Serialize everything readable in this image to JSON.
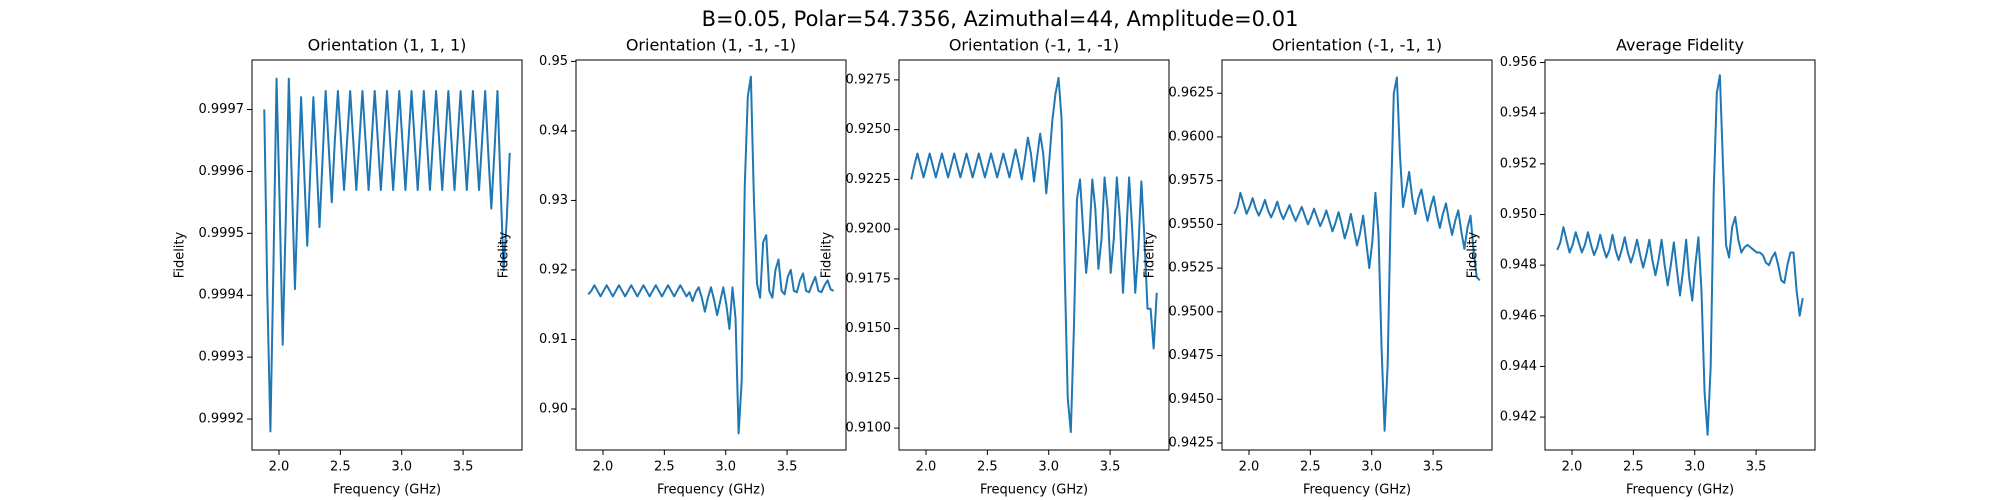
{
  "title": "B=0.05, Polar=54.7356, Azimuthal=44, Amplitude=0.01",
  "chart_data": [
    {
      "type": "line",
      "title": "Orientation (1, 1, 1)",
      "x_label": "Frequency (GHz)",
      "y_label": "Fidelity",
      "color": "#1f77b4",
      "xlim": [
        1.78,
        3.98
      ],
      "xticks": [
        {
          "value": 2,
          "label": "2.0"
        },
        2.5,
        {
          "value": 3,
          "label": "3.0"
        },
        3.5
      ],
      "ylim": [
        0.99915,
        0.99978
      ],
      "yticks": [
        0.9992,
        0.9993,
        0.9994,
        0.9995,
        0.9996,
        0.9997
      ],
      "x": [
        1.88,
        1.905,
        1.93,
        1.955,
        1.98,
        2.005,
        2.03,
        2.055,
        2.08,
        2.105,
        2.13,
        2.155,
        2.18,
        2.205,
        2.23,
        2.255,
        2.28,
        2.305,
        2.33,
        2.355,
        2.38,
        2.405,
        2.43,
        2.455,
        2.48,
        2.505,
        2.53,
        2.555,
        2.58,
        2.605,
        2.63,
        2.655,
        2.68,
        2.705,
        2.73,
        2.755,
        2.78,
        2.805,
        2.83,
        2.855,
        2.88,
        2.905,
        2.93,
        2.955,
        2.98,
        3.005,
        3.03,
        3.055,
        3.08,
        3.105,
        3.13,
        3.155,
        3.18,
        3.205,
        3.23,
        3.255,
        3.28,
        3.305,
        3.33,
        3.355,
        3.38,
        3.405,
        3.43,
        3.455,
        3.48,
        3.505,
        3.53,
        3.555,
        3.58,
        3.605,
        3.63,
        3.655,
        3.68,
        3.705,
        3.73,
        3.755,
        3.78,
        3.805,
        3.83,
        3.855,
        3.88
      ],
      "values": [
        0.9997,
        0.9994,
        0.99918,
        0.99945,
        0.99975,
        0.99955,
        0.99932,
        0.99952,
        0.99975,
        0.99958,
        0.99941,
        0.99957,
        0.99972,
        0.9996,
        0.99948,
        0.9996,
        0.99972,
        0.99962,
        0.99951,
        0.99962,
        0.99973,
        0.99964,
        0.99955,
        0.99965,
        0.99973,
        0.99965,
        0.99957,
        0.99965,
        0.99973,
        0.99965,
        0.99957,
        0.99965,
        0.99973,
        0.99965,
        0.99957,
        0.99965,
        0.99973,
        0.99965,
        0.99957,
        0.99965,
        0.99973,
        0.99965,
        0.99957,
        0.99965,
        0.99973,
        0.99965,
        0.99957,
        0.99965,
        0.99973,
        0.99965,
        0.99957,
        0.99965,
        0.99973,
        0.99965,
        0.99957,
        0.99965,
        0.99973,
        0.99965,
        0.99957,
        0.99965,
        0.99973,
        0.99965,
        0.99957,
        0.99965,
        0.99973,
        0.99965,
        0.99957,
        0.99965,
        0.99973,
        0.99965,
        0.99957,
        0.99965,
        0.99973,
        0.99963,
        0.99954,
        0.99963,
        0.99973,
        0.99958,
        0.99944,
        0.99952,
        0.99963
      ]
    },
    {
      "type": "line",
      "title": "Orientation (1, -1, -1)",
      "x_label": "Frequency (GHz)",
      "y_label": "Fidelity",
      "color": "#1f77b4",
      "xlim": [
        1.78,
        3.98
      ],
      "xticks": [
        {
          "value": 2,
          "label": "2.0"
        },
        2.5,
        {
          "value": 3,
          "label": "3.0"
        },
        3.5
      ],
      "ylim": [
        0.8941,
        0.9502
      ],
      "yticks": [
        {
          "value": 0.9,
          "label": "0.90"
        },
        0.91,
        0.92,
        0.93,
        0.94,
        0.95
      ],
      "x": [
        1.88,
        1.905,
        1.93,
        1.955,
        1.98,
        2.005,
        2.03,
        2.055,
        2.08,
        2.105,
        2.13,
        2.155,
        2.18,
        2.205,
        2.23,
        2.255,
        2.28,
        2.305,
        2.33,
        2.355,
        2.38,
        2.405,
        2.43,
        2.455,
        2.48,
        2.505,
        2.53,
        2.555,
        2.58,
        2.605,
        2.63,
        2.655,
        2.68,
        2.705,
        2.73,
        2.755,
        2.78,
        2.805,
        2.83,
        2.855,
        2.88,
        2.905,
        2.93,
        2.955,
        2.98,
        3.005,
        3.03,
        3.055,
        3.08,
        3.105,
        3.13,
        3.155,
        3.18,
        3.205,
        3.23,
        3.255,
        3.28,
        3.305,
        3.33,
        3.355,
        3.38,
        3.405,
        3.43,
        3.455,
        3.48,
        3.505,
        3.53,
        3.555,
        3.58,
        3.605,
        3.63,
        3.655,
        3.68,
        3.705,
        3.73,
        3.755,
        3.78,
        3.805,
        3.83,
        3.855,
        3.88
      ],
      "values": [
        0.9165,
        0.917,
        0.9178,
        0.917,
        0.9162,
        0.917,
        0.9178,
        0.917,
        0.9162,
        0.917,
        0.9178,
        0.917,
        0.9162,
        0.917,
        0.9178,
        0.917,
        0.9162,
        0.917,
        0.9178,
        0.917,
        0.9162,
        0.917,
        0.9178,
        0.917,
        0.9162,
        0.917,
        0.9178,
        0.917,
        0.9162,
        0.917,
        0.9178,
        0.917,
        0.9162,
        0.9168,
        0.9155,
        0.9168,
        0.9175,
        0.916,
        0.914,
        0.916,
        0.9175,
        0.9157,
        0.9135,
        0.9155,
        0.9175,
        0.915,
        0.9115,
        0.9175,
        0.913,
        0.8965,
        0.904,
        0.932,
        0.945,
        0.9478,
        0.93,
        0.918,
        0.916,
        0.924,
        0.925,
        0.917,
        0.916,
        0.92,
        0.9215,
        0.917,
        0.9165,
        0.919,
        0.92,
        0.917,
        0.9168,
        0.9185,
        0.9195,
        0.917,
        0.9168,
        0.918,
        0.919,
        0.917,
        0.9168,
        0.9178,
        0.9185,
        0.9172,
        0.917
      ]
    },
    {
      "type": "line",
      "title": "Orientation (-1, 1, -1)",
      "x_label": "Frequency (GHz)",
      "y_label": "Fidelity",
      "color": "#1f77b4",
      "xlim": [
        1.78,
        3.98
      ],
      "xticks": [
        {
          "value": 2,
          "label": "2.0"
        },
        2.5,
        {
          "value": 3,
          "label": "3.0"
        },
        3.5
      ],
      "ylim": [
        0.9089,
        0.9285
      ],
      "yticks": [
        {
          "value": 0.91,
          "label": "0.9100"
        },
        0.9125,
        {
          "value": 0.915,
          "label": "0.9150"
        },
        0.9175,
        {
          "value": 0.92,
          "label": "0.9200"
        },
        0.9225,
        {
          "value": 0.925,
          "label": "0.9250"
        },
        0.9275
      ],
      "x": [
        1.88,
        1.905,
        1.93,
        1.955,
        1.98,
        2.005,
        2.03,
        2.055,
        2.08,
        2.105,
        2.13,
        2.155,
        2.18,
        2.205,
        2.23,
        2.255,
        2.28,
        2.305,
        2.33,
        2.355,
        2.38,
        2.405,
        2.43,
        2.455,
        2.48,
        2.505,
        2.53,
        2.555,
        2.58,
        2.605,
        2.63,
        2.655,
        2.68,
        2.705,
        2.73,
        2.755,
        2.78,
        2.805,
        2.83,
        2.855,
        2.88,
        2.905,
        2.93,
        2.955,
        2.98,
        3.005,
        3.03,
        3.055,
        3.08,
        3.105,
        3.13,
        3.155,
        3.18,
        3.205,
        3.23,
        3.255,
        3.28,
        3.305,
        3.33,
        3.355,
        3.38,
        3.405,
        3.43,
        3.455,
        3.48,
        3.505,
        3.53,
        3.555,
        3.58,
        3.605,
        3.63,
        3.655,
        3.68,
        3.705,
        3.73,
        3.755,
        3.78,
        3.805,
        3.83,
        3.855,
        3.88
      ],
      "values": [
        0.9225,
        0.9232,
        0.9238,
        0.9232,
        0.9226,
        0.9232,
        0.9238,
        0.9232,
        0.9226,
        0.9232,
        0.9238,
        0.9232,
        0.9226,
        0.9232,
        0.9238,
        0.9232,
        0.9226,
        0.9232,
        0.9238,
        0.9232,
        0.9226,
        0.9232,
        0.9238,
        0.9232,
        0.9226,
        0.9232,
        0.9238,
        0.9232,
        0.9226,
        0.9232,
        0.9238,
        0.9232,
        0.9226,
        0.9233,
        0.924,
        0.9233,
        0.9225,
        0.9235,
        0.9246,
        0.9238,
        0.9224,
        0.9236,
        0.9248,
        0.9238,
        0.9218,
        0.9235,
        0.9255,
        0.9268,
        0.9276,
        0.9255,
        0.918,
        0.9115,
        0.9098,
        0.915,
        0.9215,
        0.9225,
        0.92,
        0.9178,
        0.9195,
        0.9225,
        0.921,
        0.918,
        0.9195,
        0.9226,
        0.921,
        0.9178,
        0.9195,
        0.9226,
        0.9205,
        0.9168,
        0.9195,
        0.9226,
        0.92,
        0.9168,
        0.919,
        0.9224,
        0.9195,
        0.916,
        0.916,
        0.914,
        0.9168
      ]
    },
    {
      "type": "line",
      "title": "Orientation (-1, -1, 1)",
      "x_label": "Frequency (GHz)",
      "y_label": "Fidelity",
      "color": "#1f77b4",
      "xlim": [
        1.78,
        3.98
      ],
      "xticks": [
        {
          "value": 2,
          "label": "2.0"
        },
        2.5,
        {
          "value": 3,
          "label": "3.0"
        },
        3.5
      ],
      "ylim": [
        0.9421,
        0.9644
      ],
      "yticks": [
        0.9425,
        {
          "value": 0.945,
          "label": "0.9450"
        },
        0.9475,
        {
          "value": 0.95,
          "label": "0.9500"
        },
        0.9525,
        {
          "value": 0.955,
          "label": "0.9550"
        },
        0.9575,
        {
          "value": 0.96,
          "label": "0.9600"
        },
        0.9625
      ],
      "x": [
        1.88,
        1.905,
        1.93,
        1.955,
        1.98,
        2.005,
        2.03,
        2.055,
        2.08,
        2.105,
        2.13,
        2.155,
        2.18,
        2.205,
        2.23,
        2.255,
        2.28,
        2.305,
        2.33,
        2.355,
        2.38,
        2.405,
        2.43,
        2.455,
        2.48,
        2.505,
        2.53,
        2.555,
        2.58,
        2.605,
        2.63,
        2.655,
        2.68,
        2.705,
        2.73,
        2.755,
        2.78,
        2.805,
        2.83,
        2.855,
        2.88,
        2.905,
        2.93,
        2.955,
        2.98,
        3.005,
        3.03,
        3.055,
        3.08,
        3.105,
        3.13,
        3.155,
        3.18,
        3.205,
        3.23,
        3.255,
        3.28,
        3.305,
        3.33,
        3.355,
        3.38,
        3.405,
        3.43,
        3.455,
        3.48,
        3.505,
        3.53,
        3.555,
        3.58,
        3.605,
        3.63,
        3.655,
        3.68,
        3.705,
        3.73,
        3.755,
        3.78,
        3.805,
        3.83,
        3.855,
        3.88
      ],
      "values": [
        0.9556,
        0.956,
        0.9568,
        0.9562,
        0.9556,
        0.956,
        0.9565,
        0.9559,
        0.9555,
        0.9559,
        0.9564,
        0.9558,
        0.9554,
        0.9558,
        0.9563,
        0.9557,
        0.9553,
        0.9557,
        0.9561,
        0.9556,
        0.9552,
        0.9556,
        0.956,
        0.9555,
        0.955,
        0.9554,
        0.9559,
        0.9554,
        0.9549,
        0.9553,
        0.9558,
        0.9552,
        0.9546,
        0.9551,
        0.9557,
        0.955,
        0.9542,
        0.9548,
        0.9556,
        0.9547,
        0.9538,
        0.9545,
        0.9555,
        0.954,
        0.9525,
        0.954,
        0.9568,
        0.9545,
        0.948,
        0.9432,
        0.947,
        0.956,
        0.9625,
        0.9634,
        0.959,
        0.956,
        0.957,
        0.958,
        0.9565,
        0.9556,
        0.9565,
        0.957,
        0.956,
        0.9552,
        0.956,
        0.9566,
        0.9556,
        0.9548,
        0.9556,
        0.9562,
        0.9552,
        0.9544,
        0.9552,
        0.9558,
        0.9546,
        0.9536,
        0.9548,
        0.9555,
        0.9535,
        0.952,
        0.9518
      ]
    },
    {
      "type": "line",
      "title": "Average Fidelity",
      "x_label": "Frequency (GHz)",
      "y_label": "Fidelity",
      "color": "#1f77b4",
      "xlim": [
        1.78,
        3.98
      ],
      "xticks": [
        {
          "value": 2,
          "label": "2.0"
        },
        2.5,
        {
          "value": 3,
          "label": "3.0"
        },
        3.5
      ],
      "ylim": [
        0.9407,
        0.9561
      ],
      "yticks": [
        0.942,
        0.944,
        0.946,
        0.948,
        {
          "value": 0.95,
          "label": "0.950"
        },
        0.952,
        0.954,
        0.956
      ],
      "x": [
        1.88,
        1.905,
        1.93,
        1.955,
        1.98,
        2.005,
        2.03,
        2.055,
        2.08,
        2.105,
        2.13,
        2.155,
        2.18,
        2.205,
        2.23,
        2.255,
        2.28,
        2.305,
        2.33,
        2.355,
        2.38,
        2.405,
        2.43,
        2.455,
        2.48,
        2.505,
        2.53,
        2.555,
        2.58,
        2.605,
        2.63,
        2.655,
        2.68,
        2.705,
        2.73,
        2.755,
        2.78,
        2.805,
        2.83,
        2.855,
        2.88,
        2.905,
        2.93,
        2.955,
        2.98,
        3.005,
        3.03,
        3.055,
        3.08,
        3.105,
        3.13,
        3.155,
        3.18,
        3.205,
        3.23,
        3.255,
        3.28,
        3.305,
        3.33,
        3.355,
        3.38,
        3.405,
        3.43,
        3.455,
        3.48,
        3.505,
        3.53,
        3.555,
        3.58,
        3.605,
        3.63,
        3.655,
        3.68,
        3.705,
        3.73,
        3.755,
        3.78,
        3.805,
        3.83,
        3.855,
        3.88
      ],
      "values": [
        0.9486,
        0.9489,
        0.9495,
        0.949,
        0.9485,
        0.9488,
        0.9493,
        0.9489,
        0.9485,
        0.9488,
        0.9493,
        0.9488,
        0.9484,
        0.9487,
        0.9492,
        0.9487,
        0.9483,
        0.9486,
        0.9492,
        0.9486,
        0.9482,
        0.9486,
        0.9491,
        0.9485,
        0.9481,
        0.9485,
        0.949,
        0.9484,
        0.9479,
        0.9484,
        0.949,
        0.9482,
        0.9476,
        0.9482,
        0.949,
        0.948,
        0.9472,
        0.948,
        0.9489,
        0.9478,
        0.9468,
        0.9478,
        0.949,
        0.9475,
        0.9466,
        0.948,
        0.9491,
        0.947,
        0.943,
        0.9413,
        0.944,
        0.951,
        0.9548,
        0.9555,
        0.952,
        0.9488,
        0.9483,
        0.9495,
        0.9499,
        0.949,
        0.9485,
        0.9487,
        0.9488,
        0.9487,
        0.9486,
        0.9485,
        0.9485,
        0.9484,
        0.9481,
        0.948,
        0.9483,
        0.9485,
        0.948,
        0.9474,
        0.9473,
        0.948,
        0.9485,
        0.9485,
        0.947,
        0.946,
        0.9467
      ]
    }
  ]
}
